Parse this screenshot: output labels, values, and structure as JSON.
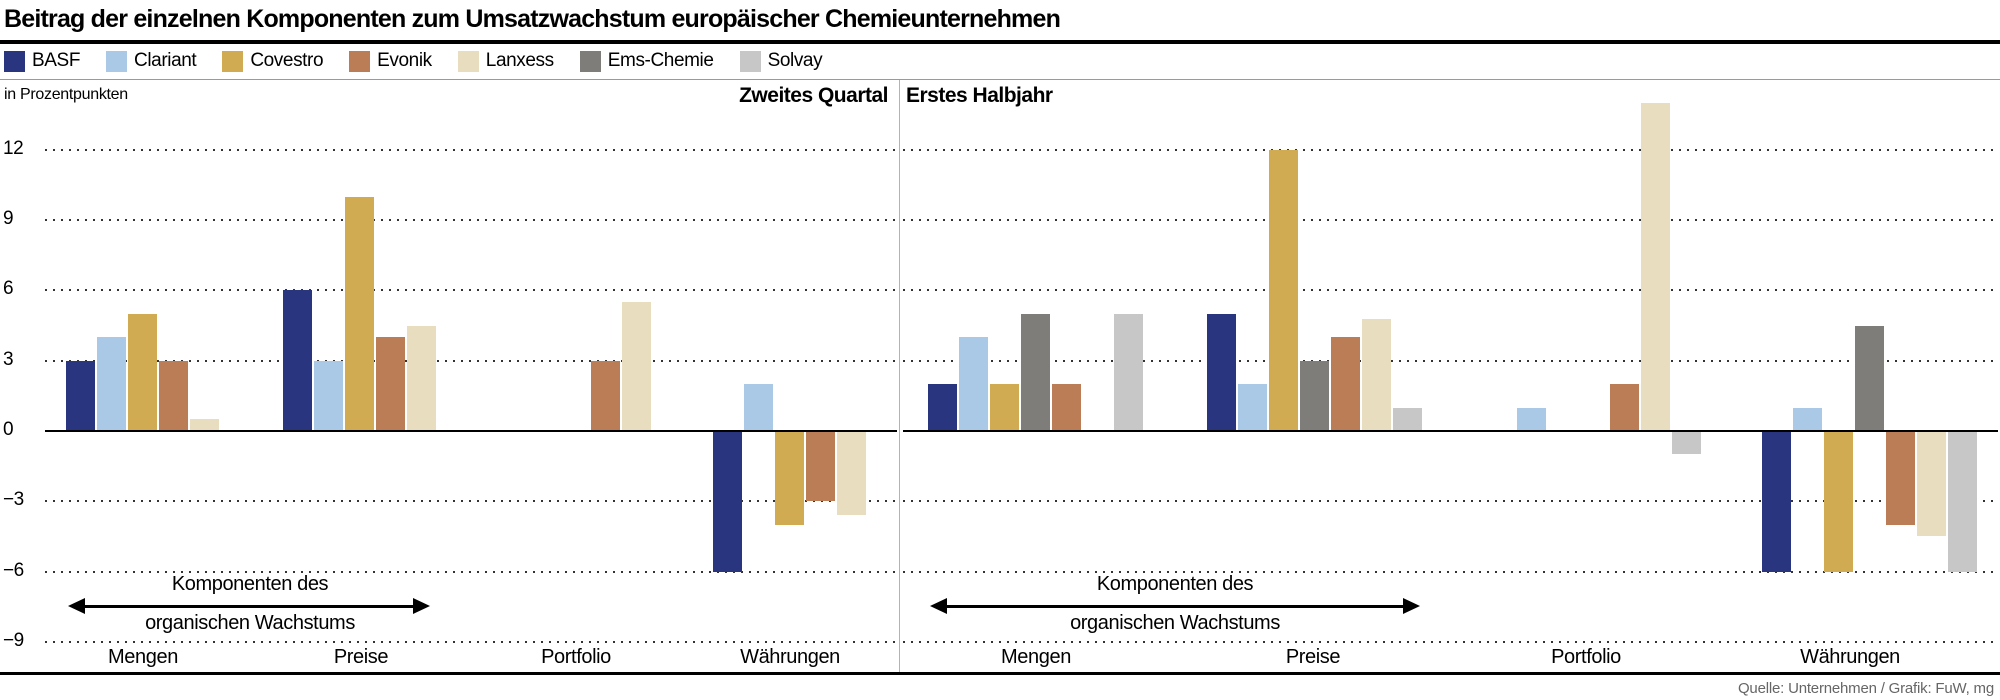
{
  "title": "Beitrag der einzelnen Komponenten zum Umsatzwachstum europäischer Chemieunternehmen",
  "source": "Quelle: Unternehmen / Grafik: FuW, mg",
  "legend": [
    {
      "name": "BASF",
      "color": "#29357f"
    },
    {
      "name": "Clariant",
      "color": "#a9c9e6"
    },
    {
      "name": "Covestro",
      "color": "#d1ab51"
    },
    {
      "name": "Evonik",
      "color": "#bb7d55"
    },
    {
      "name": "Lanxess",
      "color": "#e9ddc0"
    },
    {
      "name": "Ems-Chemie",
      "color": "#7f7d79"
    },
    {
      "name": "Solvay",
      "color": "#c7c7c7"
    }
  ],
  "chart_data": {
    "type": "bar",
    "title": "Beitrag der einzelnen Komponenten zum Umsatzwachstum europäischer Chemieunternehmen",
    "unit_label": "in Prozentpunkten",
    "ylim": [
      -9,
      12
    ],
    "yticks": [
      12,
      9,
      6,
      3,
      0,
      -3,
      -6,
      -9
    ],
    "grid": "dotted-horizontal",
    "legend_position": "top",
    "categories": [
      "Mengen",
      "Preise",
      "Portfolio",
      "Währungen"
    ],
    "annotation": {
      "line1": "Komponenten des",
      "line2": "organischen Wachstums",
      "spans": [
        "Mengen",
        "Preise"
      ]
    },
    "panels": [
      {
        "title": "Zweites Quartal",
        "slot_order": [
          "BASF",
          "Clariant",
          "Covestro",
          "Evonik",
          "Lanxess"
        ],
        "series": [
          {
            "name": "BASF",
            "values": {
              "Mengen": 3,
              "Preise": 6,
              "Portfolio": null,
              "Währungen": -6
            }
          },
          {
            "name": "Clariant",
            "values": {
              "Mengen": 4,
              "Preise": 3,
              "Portfolio": null,
              "Währungen": 2
            }
          },
          {
            "name": "Covestro",
            "values": {
              "Mengen": 5,
              "Preise": 10,
              "Portfolio": null,
              "Währungen": -4
            }
          },
          {
            "name": "Evonik",
            "values": {
              "Mengen": 3,
              "Preise": 4,
              "Portfolio": 3,
              "Währungen": -3
            }
          },
          {
            "name": "Lanxess",
            "values": {
              "Mengen": 0.5,
              "Preise": 4.5,
              "Portfolio": 5.5,
              "Währungen": -3.6
            }
          }
        ]
      },
      {
        "title": "Erstes Halbjahr",
        "slot_order": [
          "BASF",
          "Clariant",
          "Covestro",
          "Ems-Chemie",
          "Evonik",
          "Lanxess",
          "Solvay"
        ],
        "series": [
          {
            "name": "BASF",
            "values": {
              "Mengen": 2,
              "Preise": 5,
              "Portfolio": null,
              "Währungen": -6
            }
          },
          {
            "name": "Clariant",
            "values": {
              "Mengen": 4,
              "Preise": 2,
              "Portfolio": 1,
              "Währungen": 1
            }
          },
          {
            "name": "Covestro",
            "values": {
              "Mengen": 2,
              "Preise": 12,
              "Portfolio": null,
              "Währungen": -6
            }
          },
          {
            "name": "Ems-Chemie",
            "values": {
              "Mengen": 5,
              "Preise": 3,
              "Portfolio": null,
              "Währungen": 4.5
            }
          },
          {
            "name": "Evonik",
            "values": {
              "Mengen": 2,
              "Preise": 4,
              "Portfolio": 2,
              "Währungen": -4
            }
          },
          {
            "name": "Lanxess",
            "values": {
              "Mengen": null,
              "Preise": 4.8,
              "Portfolio": 14,
              "Währungen": -4.5
            }
          },
          {
            "name": "Solvay",
            "values": {
              "Mengen": 5,
              "Preise": 1,
              "Portfolio": -1,
              "Währungen": -6
            }
          }
        ]
      }
    ]
  }
}
